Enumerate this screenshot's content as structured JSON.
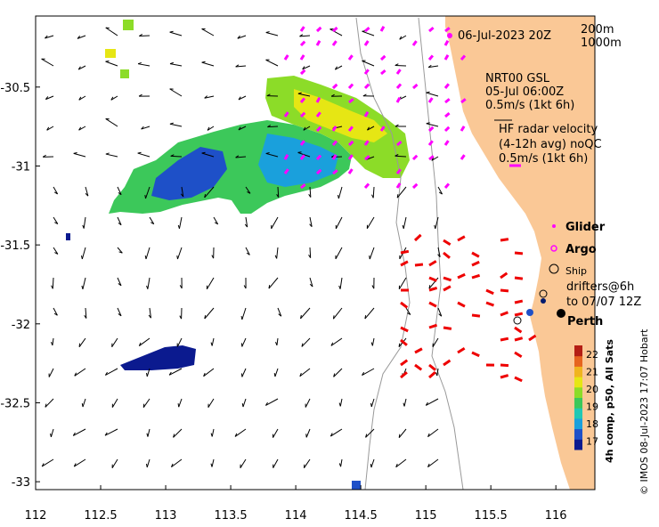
{
  "map": {
    "timestamp": "06-Jul-2023 20Z",
    "depth_labels": [
      "200m",
      "1000m"
    ],
    "nrt_label": "NRT00 GSL",
    "nrt_time": "05-Jul 06:00Z",
    "nrt_scale": "0.5m/s (1kt 6h)",
    "hf_title": "HF radar velocity",
    "hf_avg": "(4-12h avg) noQC",
    "hf_scale": "0.5m/s (1kt 6h)",
    "legend": {
      "glider": "Glider",
      "argo": "Argo",
      "ship": "Ship",
      "drifters_1": "drifters@6h",
      "drifters_2": "to 07/07 12Z",
      "city": "Perth"
    },
    "colorbar": {
      "title": "4h comp, p50, All Sats",
      "ticks": [
        "22",
        "21",
        "20",
        "19",
        "18",
        "17"
      ],
      "range": [
        16.5,
        22.5
      ],
      "colors": [
        "#0b1a8f",
        "#1e50c8",
        "#1aa0dc",
        "#20c8b4",
        "#3cc85a",
        "#8cdc28",
        "#e6e614",
        "#f0b41e",
        "#e6641e",
        "#b41e14"
      ]
    },
    "credit": "© IMOS 08-Jul-2023 17:07 Hobart",
    "x_axis_ticks": [
      "112",
      "112.5",
      "113",
      "113.5",
      "114",
      "114.5",
      "115",
      "115.5",
      "116"
    ],
    "y_axis_ticks": [
      "-30.5",
      "-31",
      "-31.5",
      "-32",
      "-32.5",
      "-33"
    ],
    "x_range": [
      112,
      116.3
    ],
    "y_range": [
      -33.05,
      -30.05
    ],
    "colors": {
      "land": "#fac896",
      "argo": "#ff00ff",
      "hf_radar": "#ee0000",
      "ocean_arrows": "#000000"
    }
  }
}
